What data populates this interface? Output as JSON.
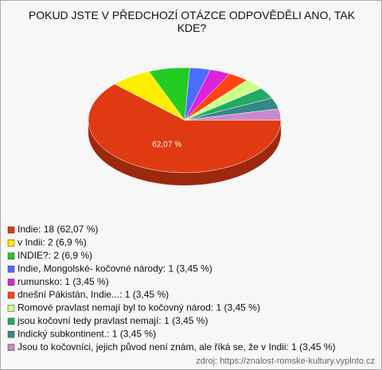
{
  "chart_data": {
    "type": "pie",
    "title": "POKUD JSTE V PŘEDCHOZÍ OTÁZCE ODPOVĚDĚLI ANO, TAK KDE?",
    "categories": [
      "Indie: 18 (62,07 %)",
      "v Indii: 2 (6,9 %)",
      "INDIE?: 2 (6,9 %)",
      "Indie, Mongolské- kočovné národy: 1 (3,45 %)",
      "rumunsko: 1 (3,45 %)",
      "dnešní Pákistán, Indie...: 1 (3,45 %)",
      "Romové pravlast nemají byl to kočovný národ: 1 (3,45 %)",
      "jsou kočovní tedy pravlast nemají: 1 (3,45 %)",
      "Indický subkontinent.: 1 (3,45 %)",
      "Jsou to kočovníci, jejich původ není znám, ale říká se, že v Indii: 1 (3,45 %)"
    ],
    "values": [
      62.07,
      6.9,
      6.9,
      3.45,
      3.45,
      3.45,
      3.45,
      3.45,
      3.45,
      3.45
    ],
    "value_labels": [
      "62,07 %",
      null,
      null,
      null,
      null,
      null,
      null,
      null,
      null,
      null
    ],
    "colors": [
      "#e03a12",
      "#ffee00",
      "#22cc22",
      "#4a6cff",
      "#dd22dd",
      "#ff4411",
      "#ccff88",
      "#22aa66",
      "#338888",
      "#cc88cc"
    ],
    "source": "zdroj: https://znalost-romske-kultury.vyplnto.cz"
  }
}
